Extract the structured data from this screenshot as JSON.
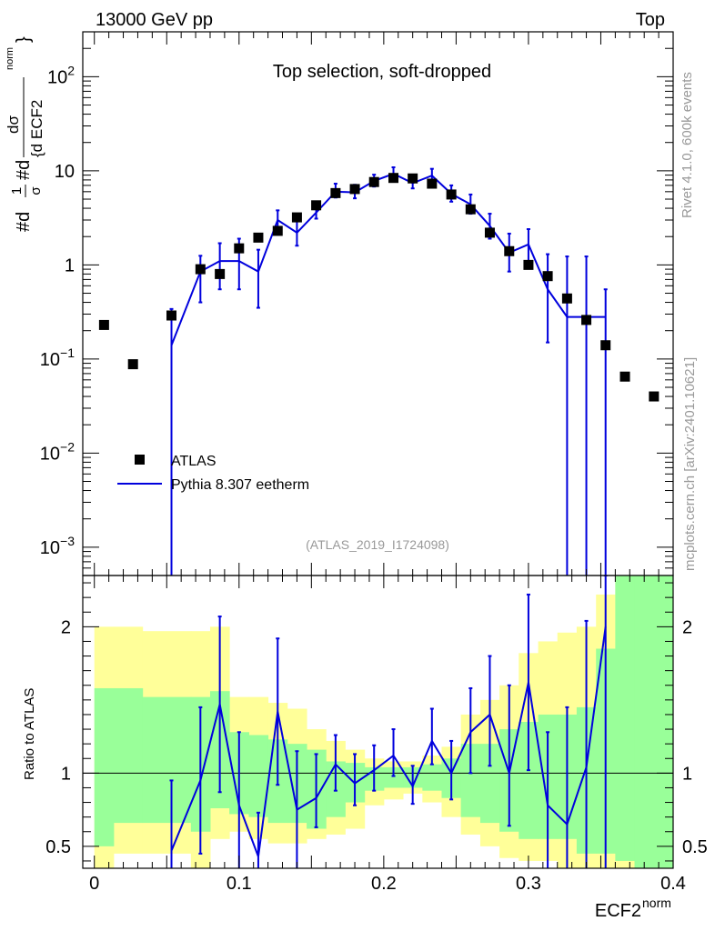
{
  "header": {
    "energy_label": "13000 GeV pp",
    "process_label": "Top"
  },
  "side_labels": {
    "rivet": "Rivet 4.1.0,  600k events",
    "mcplots": "mcplots.cern.ch [arXiv:2401.10621]"
  },
  "colors": {
    "mc_line": "#0000dd",
    "data_marker": "#000000",
    "band_inner": "#99ff99",
    "band_outer": "#ffff99",
    "frame": "#000000"
  },
  "chart_data": [
    {
      "type": "scatter",
      "title": "Top selection, soft-dropped",
      "analysis_id": "(ATLAS_2019_I1724098)",
      "ylabel_parts": {
        "prefix": "#d",
        "one": "1",
        "sigma": "σ",
        "num": "#d",
        "dsigma": "dσ",
        "den": "{d ECF2",
        "norm": "norm",
        "close": "}"
      },
      "yscale": "log",
      "ylim": [
        0.0005,
        300
      ],
      "xlim": [
        -0.008,
        0.4
      ],
      "ytick_labels": [
        {
          "value": 100,
          "mantissa": "10",
          "exp": "2"
        },
        {
          "value": 10,
          "mantissa": "10",
          "exp": ""
        },
        {
          "value": 1,
          "mantissa": "1",
          "exp": ""
        },
        {
          "value": 0.1,
          "mantissa": "10",
          "exp": "−1"
        },
        {
          "value": 0.01,
          "mantissa": "10",
          "exp": "−2"
        },
        {
          "value": 0.001,
          "mantissa": "10",
          "exp": "−3"
        }
      ],
      "legend": {
        "position": "lower-left",
        "entries": [
          "ATLAS",
          "Pythia 8.307 eetherm"
        ]
      },
      "series": [
        {
          "name": "ATLAS",
          "kind": "markers",
          "x": [
            0.0067,
            0.0267,
            0.0533,
            0.0733,
            0.0867,
            0.1,
            0.1133,
            0.1267,
            0.14,
            0.1533,
            0.1667,
            0.18,
            0.1933,
            0.2067,
            0.22,
            0.2333,
            0.2467,
            0.26,
            0.2733,
            0.2867,
            0.3,
            0.3133,
            0.3267,
            0.34,
            0.3533,
            0.3667,
            0.3867
          ],
          "y": [
            0.23,
            0.088,
            0.29,
            0.9,
            0.8,
            1.5,
            1.95,
            2.3,
            3.2,
            4.3,
            5.8,
            6.4,
            7.6,
            8.4,
            8.3,
            7.3,
            5.6,
            3.9,
            2.2,
            1.4,
            1.0,
            0.76,
            0.44,
            0.26,
            0.14,
            0.065,
            0.04
          ]
        },
        {
          "name": "Pythia 8.307 eetherm",
          "kind": "line",
          "x": [
            0.0533,
            0.0733,
            0.0867,
            0.1,
            0.1133,
            0.1267,
            0.14,
            0.1533,
            0.1667,
            0.18,
            0.1933,
            0.2067,
            0.22,
            0.2333,
            0.2467,
            0.26,
            0.2733,
            0.2867,
            0.3,
            0.3133,
            0.3267,
            0.34,
            0.3533
          ],
          "y": [
            0.14,
            0.85,
            1.1,
            1.1,
            0.85,
            3.0,
            2.2,
            3.6,
            6.0,
            5.9,
            7.8,
            9.3,
            7.4,
            8.9,
            5.7,
            4.4,
            2.6,
            1.35,
            1.65,
            0.55,
            0.28,
            0.28,
            0.28
          ],
          "err_low": [
            0.14,
            0.45,
            0.55,
            0.55,
            0.5,
            0.6,
            0.6,
            0.5,
            0.8,
            0.8,
            1.0,
            1.2,
            0.9,
            1.2,
            1.0,
            0.9,
            0.7,
            0.5,
            0.6,
            0.4,
            0.3,
            0.3,
            0.3
          ],
          "err_high": [
            0.2,
            0.4,
            0.6,
            0.8,
            0.6,
            0.8,
            0.7,
            0.8,
            1.3,
            1.2,
            1.3,
            1.6,
            1.5,
            1.6,
            1.3,
            1.2,
            0.9,
            0.8,
            0.75,
            0.75,
            0.95,
            0.95,
            0.27
          ]
        }
      ]
    },
    {
      "type": "scatter",
      "ylabel": "Ratio to ATLAS",
      "xlabel_main": "ECF2",
      "xlabel_sup": "norm",
      "ylim": [
        0.35,
        2.35
      ],
      "xlim": [
        -0.008,
        0.4
      ],
      "xtick_labels": [
        "0",
        "0.1",
        "0.2",
        "0.3",
        "0.4"
      ],
      "xtick_values": [
        0,
        0.1,
        0.2,
        0.3,
        0.4
      ],
      "ytick_labels": [
        "0.5",
        "1",
        "2"
      ],
      "ytick_values": [
        0.5,
        1,
        2
      ],
      "reference_line": 1,
      "bands": {
        "edges": [
          0,
          0.0133,
          0.0333,
          0.0667,
          0.08,
          0.0933,
          0.1067,
          0.12,
          0.1333,
          0.1467,
          0.16,
          0.1733,
          0.1867,
          0.2,
          0.2133,
          0.2267,
          0.24,
          0.2533,
          0.2667,
          0.28,
          0.2933,
          0.3067,
          0.32,
          0.3333,
          0.3467,
          0.36,
          0.3733,
          0.4
        ],
        "inner_low": [
          0.5,
          0.66,
          0.66,
          0.6,
          0.76,
          0.72,
          0.7,
          0.66,
          0.66,
          0.62,
          0.7,
          0.8,
          0.88,
          0.9,
          0.9,
          0.88,
          0.83,
          0.7,
          0.66,
          0.6,
          0.55,
          0.55,
          0.55,
          0.45,
          0.45,
          0.4,
          0.35
        ],
        "inner_high": [
          1.58,
          1.58,
          1.52,
          1.52,
          1.56,
          1.28,
          1.26,
          1.23,
          1.2,
          1.16,
          1.08,
          1.07,
          1.04,
          1.04,
          1.04,
          1.06,
          1.1,
          1.2,
          1.2,
          1.3,
          1.35,
          1.4,
          1.4,
          1.45,
          1.85,
          2.35,
          2.35
        ],
        "outer_low": [
          0.35,
          0.45,
          0.45,
          0.35,
          0.55,
          0.6,
          0.55,
          0.52,
          0.52,
          0.55,
          0.58,
          0.62,
          0.78,
          0.82,
          0.86,
          0.8,
          0.7,
          0.58,
          0.5,
          0.42,
          0.4,
          0.4,
          0.35,
          0.35,
          0.35,
          0.35,
          0.35
        ],
        "outer_high": [
          2.0,
          2.0,
          1.97,
          1.97,
          2.0,
          1.52,
          1.52,
          1.48,
          1.44,
          1.3,
          1.22,
          1.16,
          1.1,
          1.08,
          1.08,
          1.12,
          1.18,
          1.4,
          1.5,
          1.6,
          1.82,
          1.9,
          1.96,
          2.0,
          2.22,
          2.35,
          2.35
        ]
      },
      "series": [
        {
          "name": "Pythia 8.307 eetherm / ATLAS",
          "kind": "line",
          "x": [
            0.0533,
            0.0733,
            0.0867,
            0.1,
            0.1133,
            0.1267,
            0.14,
            0.1533,
            0.1667,
            0.18,
            0.1933,
            0.2067,
            0.22,
            0.2333,
            0.2467,
            0.26,
            0.2733,
            0.2867,
            0.3,
            0.3133,
            0.3267,
            0.34,
            0.3533
          ],
          "y": [
            0.47,
            0.95,
            1.47,
            0.78,
            0.43,
            1.42,
            0.75,
            0.83,
            1.06,
            0.93,
            1.02,
            1.12,
            0.91,
            1.22,
            1.0,
            1.28,
            1.4,
            1.0,
            1.62,
            0.78,
            0.65,
            1.04,
            2.0
          ],
          "err_low": [
            0.47,
            0.5,
            0.6,
            0.5,
            0.3,
            0.5,
            0.4,
            0.2,
            0.18,
            0.15,
            0.14,
            0.14,
            0.12,
            0.16,
            0.18,
            0.28,
            0.35,
            0.36,
            0.6,
            0.78,
            0.65,
            1.04,
            2.0
          ],
          "err_high": [
            0.48,
            0.5,
            0.6,
            0.5,
            0.3,
            0.5,
            0.4,
            0.3,
            0.2,
            0.2,
            0.17,
            0.18,
            0.14,
            0.22,
            0.22,
            0.3,
            0.4,
            0.6,
            0.6,
            0.5,
            0.8,
            1.0,
            0.35
          ]
        }
      ]
    }
  ]
}
